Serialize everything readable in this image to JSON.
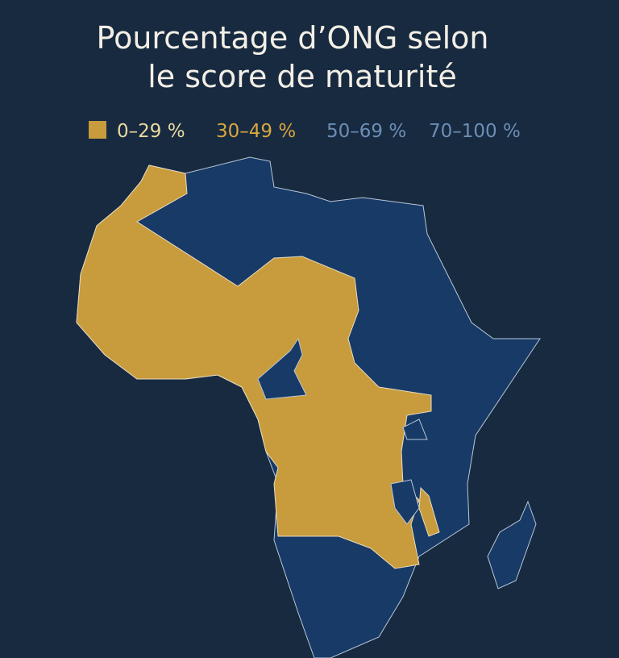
{
  "title_lines": [
    "Pourcentage d’ONG selon",
    "le score de maturité"
  ],
  "legend": [
    {
      "label": "0–29 %"
    },
    {
      "label": "30–49 %"
    },
    {
      "label": "50–69 %"
    },
    {
      "label": "70–100 %"
    }
  ]
}
